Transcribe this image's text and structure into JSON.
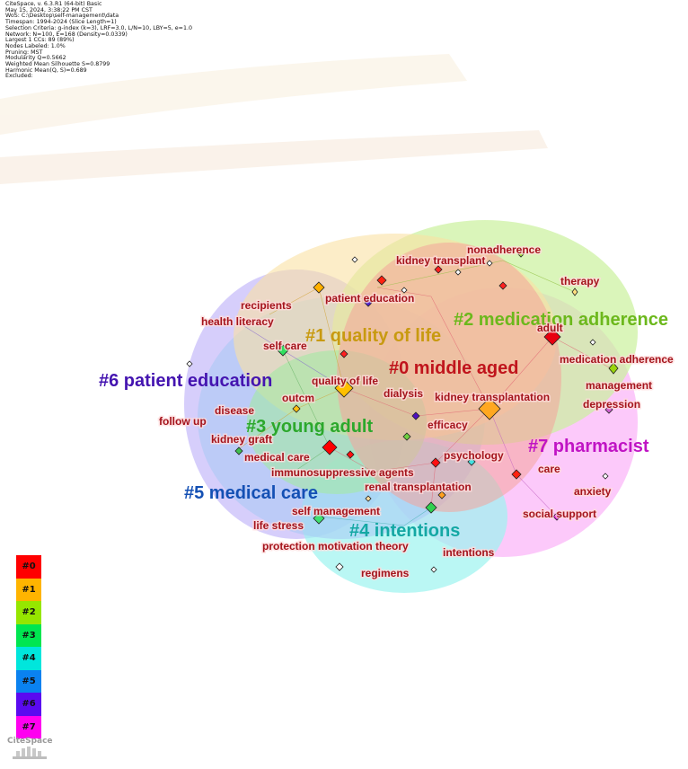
{
  "info_lines": [
    "CiteSpace, v. 6.3.R1 (64-bit) Basic",
    "May 15, 2024, 3:38:22 PM CST",
    "WoS: C:\\Desktop\\self-management\\data",
    "Timespan: 1994-2024 (Slice Length=1)",
    "Selection Criteria: g-index (k=3), LRF=3.0, L/N=10, LBY=5, e=1.0",
    "Network: N=100, E=168 (Density=0.0339)",
    "Largest 1 CCs: 89 (89%)",
    "Nodes Labeled: 1.0%",
    "Pruning: MST",
    "Modularity Q=0.5662",
    "Weighted Mean Silhouette S=0.8799",
    "Harmonic Mean(Q, S)=0.689",
    "Excluded:"
  ],
  "clusters": [
    {
      "id": "#0",
      "label": "#0 middle aged",
      "color": "#c0141c"
    },
    {
      "id": "#1",
      "label": "#1 quality of life",
      "color": "#c89a10"
    },
    {
      "id": "#2",
      "label": "#2 medication adherence",
      "color": "#6cb81c"
    },
    {
      "id": "#3",
      "label": "#3 young adult",
      "color": "#2ca82c"
    },
    {
      "id": "#4",
      "label": "#4 intentions",
      "color": "#14a8a4"
    },
    {
      "id": "#5",
      "label": "#5 medical care",
      "color": "#1450b4"
    },
    {
      "id": "#6",
      "label": "#6 patient education",
      "color": "#4414b0"
    },
    {
      "id": "#7",
      "label": "#7 pharmacist",
      "color": "#c014c4"
    }
  ],
  "keywords": {
    "kidney_transplant": "kidney transplant",
    "nonadherence": "nonadherence",
    "therapy": "therapy",
    "patient_education": "patient education",
    "recipients": "recipients",
    "health_literacy": "health literacy",
    "adult": "adult",
    "self_care": "self care",
    "medication_adherence": "medication adherence",
    "management": "management",
    "quality_of_life": "quality of life",
    "dialysis": "dialysis",
    "kidney_transplantation": "kidney transplantation",
    "depression": "depression",
    "outcm": "outcm",
    "disease": "disease",
    "follow_up": "follow up",
    "efficacy": "efficacy",
    "kidney_graft": "kidney graft",
    "medical_care": "medical care",
    "psychology": "psychology",
    "care": "care",
    "immunosuppressive_agents": "immunosuppressive agents",
    "renal_transplantation": "renal transplantation",
    "anxiety": "anxiety",
    "self_management": "self management",
    "social_support": "social support",
    "life_stress": "life stress",
    "protection_motivation_theory": "protection motivation theory",
    "intentions": "intentions",
    "regimens": "regimens"
  },
  "legend": [
    {
      "label": "#0",
      "color": "#ff0000"
    },
    {
      "label": "#1",
      "color": "#ffb400"
    },
    {
      "label": "#2",
      "color": "#96e600"
    },
    {
      "label": "#3",
      "color": "#00e650"
    },
    {
      "label": "#4",
      "color": "#00e6dc"
    },
    {
      "label": "#5",
      "color": "#0a82f0"
    },
    {
      "label": "#6",
      "color": "#5a0af0"
    },
    {
      "label": "#7",
      "color": "#ff00f0"
    }
  ],
  "logo_text": "CiteSpace"
}
